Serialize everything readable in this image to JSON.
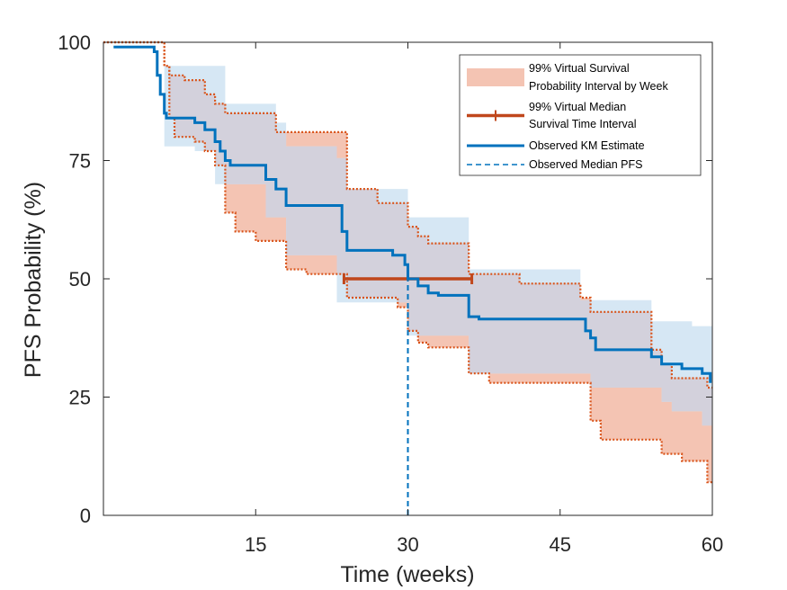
{
  "chart_data": {
    "type": "line",
    "xlabel": "Time (weeks)",
    "ylabel": "PFS Probability (%)",
    "xlim": [
      0,
      60
    ],
    "ylim": [
      0,
      100
    ],
    "xticks": [
      15,
      30,
      45,
      60
    ],
    "xtick_labels": [
      "15",
      "30",
      "45",
      "60"
    ],
    "yticks": [
      0,
      25,
      50,
      75,
      100
    ],
    "ytick_labels": [
      "0",
      "25",
      "50",
      "75",
      "100"
    ],
    "grid": false,
    "legend_position": "top-right",
    "legend": [
      {
        "label_lines": [
          "99% Virtual Survival",
          "Probability Interval by Week"
        ],
        "style": "patch"
      },
      {
        "label_lines": [
          "99% Virtual Median",
          "Survival Time Interval"
        ],
        "style": "errorbar"
      },
      {
        "label_lines": [
          "Observed KM Estimate"
        ],
        "style": "solid"
      },
      {
        "label_lines": [
          "Observed Median PFS"
        ],
        "style": "dashed"
      }
    ],
    "colors": {
      "interval_fill": "#f4c4b3",
      "interval_edge": "#d95319",
      "observed": "#0072bd",
      "observed_band": "#d6e7f4",
      "overlap_fill": "#d3d1dc",
      "median_interval": "#c0471c",
      "median_dashed": "#0072bd"
    },
    "series": [
      {
        "name": "99% Virtual Survival Probability Interval by Week",
        "upper": [
          [
            0,
            100
          ],
          [
            6,
            100
          ],
          [
            6,
            95
          ],
          [
            6.5,
            95
          ],
          [
            6.5,
            93
          ],
          [
            8,
            93
          ],
          [
            8,
            92
          ],
          [
            10,
            92
          ],
          [
            10,
            89
          ],
          [
            11,
            89
          ],
          [
            11,
            87
          ],
          [
            12,
            87
          ],
          [
            12,
            85
          ],
          [
            17,
            85
          ],
          [
            17,
            81
          ],
          [
            24,
            81
          ],
          [
            24,
            69
          ],
          [
            27,
            69
          ],
          [
            27,
            66
          ],
          [
            30,
            66
          ],
          [
            30,
            61
          ],
          [
            31,
            61
          ],
          [
            31,
            59
          ],
          [
            32,
            59
          ],
          [
            32,
            57.5
          ],
          [
            36,
            57.5
          ],
          [
            36,
            51
          ],
          [
            41,
            51
          ],
          [
            41,
            49
          ],
          [
            47,
            49
          ],
          [
            47,
            46
          ],
          [
            48,
            46
          ],
          [
            48,
            43
          ],
          [
            54,
            43
          ],
          [
            54,
            35
          ],
          [
            55,
            35
          ],
          [
            55,
            32
          ],
          [
            56,
            32
          ],
          [
            56,
            29
          ],
          [
            59.5,
            29
          ],
          [
            59.5,
            27
          ],
          [
            60,
            27
          ]
        ],
        "lower": [
          [
            0,
            100
          ],
          [
            6,
            100
          ],
          [
            6,
            95
          ],
          [
            6.5,
            95
          ],
          [
            6.5,
            84
          ],
          [
            7,
            84
          ],
          [
            7,
            80
          ],
          [
            9,
            80
          ],
          [
            9,
            79
          ],
          [
            10,
            79
          ],
          [
            10,
            77
          ],
          [
            11,
            77
          ],
          [
            11,
            74
          ],
          [
            12,
            74
          ],
          [
            12,
            64
          ],
          [
            13,
            64
          ],
          [
            13,
            60
          ],
          [
            15,
            60
          ],
          [
            15,
            58
          ],
          [
            18,
            58
          ],
          [
            18,
            52
          ],
          [
            20,
            52
          ],
          [
            20,
            51
          ],
          [
            24,
            51
          ],
          [
            24,
            46
          ],
          [
            29,
            46
          ],
          [
            29,
            44
          ],
          [
            30,
            44
          ],
          [
            30,
            39
          ],
          [
            31,
            39
          ],
          [
            31,
            36.5
          ],
          [
            32,
            36.5
          ],
          [
            32,
            35.5
          ],
          [
            36,
            35.5
          ],
          [
            36,
            30
          ],
          [
            38,
            30
          ],
          [
            38,
            28
          ],
          [
            48,
            28
          ],
          [
            48,
            20
          ],
          [
            49,
            20
          ],
          [
            49,
            16
          ],
          [
            55,
            16
          ],
          [
            55,
            13
          ],
          [
            57,
            13
          ],
          [
            57,
            11.5
          ],
          [
            59.5,
            11.5
          ],
          [
            59.5,
            7
          ],
          [
            60,
            7
          ]
        ]
      },
      {
        "name": "Observed KM Estimate",
        "steps": [
          [
            1,
            99
          ],
          [
            5,
            99
          ],
          [
            5,
            98
          ],
          [
            5.3,
            98
          ],
          [
            5.3,
            93
          ],
          [
            5.6,
            93
          ],
          [
            5.6,
            89
          ],
          [
            6,
            89
          ],
          [
            6,
            85
          ],
          [
            6.2,
            85
          ],
          [
            6.2,
            84
          ],
          [
            9,
            84
          ],
          [
            9,
            83
          ],
          [
            10,
            83
          ],
          [
            10,
            81.5
          ],
          [
            11,
            81.5
          ],
          [
            11,
            79
          ],
          [
            11.5,
            79
          ],
          [
            11.5,
            77
          ],
          [
            12,
            77
          ],
          [
            12,
            75
          ],
          [
            12.5,
            75
          ],
          [
            12.5,
            74
          ],
          [
            16,
            74
          ],
          [
            16,
            71
          ],
          [
            17,
            71
          ],
          [
            17,
            69
          ],
          [
            18,
            69
          ],
          [
            18,
            65.5
          ],
          [
            23.5,
            65.5
          ],
          [
            23.5,
            60
          ],
          [
            24,
            60
          ],
          [
            24,
            56
          ],
          [
            28.5,
            56
          ],
          [
            28.5,
            55
          ],
          [
            29.7,
            55
          ],
          [
            29.7,
            53
          ],
          [
            30,
            53
          ],
          [
            30,
            50
          ],
          [
            31,
            50
          ],
          [
            31,
            48.5
          ],
          [
            32,
            48.5
          ],
          [
            32,
            47
          ],
          [
            33,
            47
          ],
          [
            33,
            46.5
          ],
          [
            36,
            46.5
          ],
          [
            36,
            42
          ],
          [
            37,
            42
          ],
          [
            37,
            41.5
          ],
          [
            47.5,
            41.5
          ],
          [
            47.5,
            39
          ],
          [
            48,
            39
          ],
          [
            48,
            37.5
          ],
          [
            48.5,
            37.5
          ],
          [
            48.5,
            35
          ],
          [
            54,
            35
          ],
          [
            54,
            33.5
          ],
          [
            55,
            33.5
          ],
          [
            55,
            32
          ],
          [
            57,
            32
          ],
          [
            57,
            31
          ],
          [
            59,
            31
          ],
          [
            59,
            30
          ],
          [
            59.8,
            30
          ],
          [
            59.8,
            28
          ]
        ],
        "band_upper": [
          [
            0,
            100
          ],
          [
            6,
            100
          ],
          [
            6,
            95
          ],
          [
            12,
            95
          ],
          [
            12,
            87
          ],
          [
            17,
            87
          ],
          [
            17,
            83
          ],
          [
            18,
            83
          ],
          [
            18,
            78
          ],
          [
            23,
            78
          ],
          [
            23,
            75.5
          ],
          [
            24,
            75.5
          ],
          [
            24,
            69
          ],
          [
            30,
            69
          ],
          [
            30,
            63
          ],
          [
            36,
            63
          ],
          [
            36,
            52
          ],
          [
            47,
            52
          ],
          [
            47,
            45.5
          ],
          [
            54,
            45.5
          ],
          [
            54,
            41
          ],
          [
            58,
            41
          ],
          [
            58,
            40
          ],
          [
            60,
            40
          ]
        ],
        "band_lower": [
          [
            0,
            100
          ],
          [
            6,
            100
          ],
          [
            6,
            78
          ],
          [
            9,
            78
          ],
          [
            9,
            77
          ],
          [
            11,
            77
          ],
          [
            11,
            70
          ],
          [
            16,
            70
          ],
          [
            16,
            63
          ],
          [
            18,
            63
          ],
          [
            18,
            55
          ],
          [
            23,
            55
          ],
          [
            23,
            45
          ],
          [
            30,
            45
          ],
          [
            30,
            38
          ],
          [
            36,
            38
          ],
          [
            36,
            30
          ],
          [
            48,
            30
          ],
          [
            48,
            27
          ],
          [
            55,
            27
          ],
          [
            55,
            24
          ],
          [
            56,
            24
          ],
          [
            56,
            22
          ],
          [
            59,
            22
          ],
          [
            59,
            19
          ],
          [
            60,
            19
          ]
        ]
      }
    ],
    "median_interval": {
      "y": 50,
      "x_low": 23.7,
      "x_high": 36.3,
      "label": "99% Virtual Median Survival Time Interval"
    },
    "observed_median": {
      "x": 30,
      "y_from": 0,
      "y_to": 50,
      "label": "Observed Median PFS"
    }
  }
}
